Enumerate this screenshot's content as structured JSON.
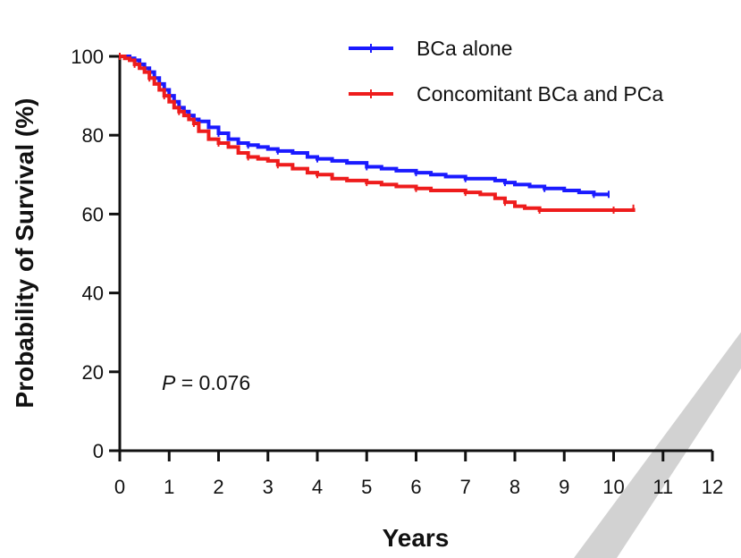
{
  "chart_data": {
    "type": "line",
    "title": "",
    "xlabel": "Years",
    "ylabel": "Probability of Survival (%)",
    "xlim": [
      0,
      12
    ],
    "ylim": [
      0,
      100
    ],
    "xticks": [
      0,
      1,
      2,
      3,
      4,
      5,
      6,
      7,
      8,
      9,
      10,
      11,
      12
    ],
    "yticks": [
      0,
      20,
      40,
      60,
      80,
      100
    ],
    "grid": false,
    "legend_position": "top-right",
    "annotation": {
      "p_symbol": "P",
      "p_text": " = 0.076"
    },
    "series": [
      {
        "name": "BCa alone",
        "color": "#1a1aff",
        "step": true,
        "x": [
          0,
          0.1,
          0.2,
          0.3,
          0.4,
          0.5,
          0.6,
          0.7,
          0.8,
          0.9,
          1.0,
          1.1,
          1.2,
          1.3,
          1.4,
          1.5,
          1.6,
          1.8,
          2.0,
          2.2,
          2.4,
          2.6,
          2.8,
          3.0,
          3.2,
          3.5,
          3.8,
          4.0,
          4.3,
          4.6,
          5.0,
          5.3,
          5.6,
          6.0,
          6.3,
          6.6,
          7.0,
          7.3,
          7.6,
          7.8,
          8.0,
          8.3,
          8.6,
          9.0,
          9.3,
          9.6,
          9.9
        ],
        "values": [
          100,
          100,
          99.5,
          99,
          98,
          97,
          96,
          94.5,
          93,
          91.5,
          90,
          88.5,
          87,
          86,
          85,
          84,
          83.5,
          82,
          80.5,
          79,
          78,
          77.5,
          77,
          76.5,
          76,
          75.5,
          74.5,
          74,
          73.5,
          73,
          72,
          71.5,
          71,
          70.5,
          70,
          69.5,
          69,
          69,
          68.5,
          68,
          67.5,
          67,
          66.5,
          66,
          65.5,
          65,
          65
        ]
      },
      {
        "name": "Concomitant BCa and PCa",
        "color": "#ee1c1c",
        "step": true,
        "x": [
          0,
          0.1,
          0.2,
          0.3,
          0.4,
          0.5,
          0.6,
          0.7,
          0.8,
          0.9,
          1.0,
          1.1,
          1.2,
          1.3,
          1.4,
          1.5,
          1.6,
          1.8,
          2.0,
          2.2,
          2.4,
          2.6,
          2.8,
          3.0,
          3.2,
          3.5,
          3.8,
          4.0,
          4.3,
          4.6,
          5.0,
          5.3,
          5.6,
          6.0,
          6.3,
          6.6,
          7.0,
          7.3,
          7.6,
          7.8,
          8.0,
          8.2,
          8.5,
          9.0,
          9.5,
          10.0,
          10.4
        ],
        "values": [
          100,
          99.5,
          99,
          98,
          97,
          96,
          94.5,
          93,
          91.5,
          90,
          88.5,
          87,
          86,
          85,
          84,
          83,
          81,
          79,
          78,
          77,
          75.5,
          74.5,
          74,
          73.5,
          72.5,
          71.5,
          70.5,
          70,
          69,
          68.5,
          68,
          67.5,
          67,
          66.5,
          66,
          66,
          65.5,
          65,
          64,
          63,
          62,
          61.5,
          61,
          61,
          61,
          61,
          61.5
        ]
      }
    ]
  }
}
